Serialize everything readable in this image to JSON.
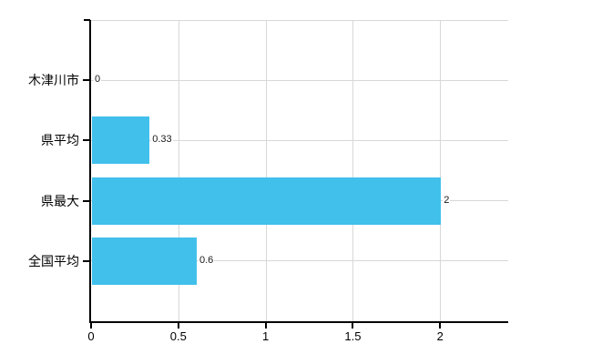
{
  "chart": {
    "bar_color": "#41c0eb",
    "gridline_color": "#d8d8d8",
    "axis_color": "#000000",
    "background_color": "#ffffff"
  },
  "chart_data": {
    "type": "bar",
    "orientation": "horizontal",
    "title": "",
    "xlabel": "",
    "ylabel": "",
    "categories": [
      "木津川市",
      "県平均",
      "県最大",
      "全国平均"
    ],
    "values": [
      0,
      0.33,
      2,
      0.6
    ],
    "value_labels": [
      "0",
      "0.33",
      "2",
      "0.6"
    ],
    "xticks": [
      0,
      0.5,
      1,
      1.5,
      2
    ],
    "xtick_labels": [
      "0",
      "0.5",
      "1",
      "1.5",
      "2"
    ],
    "xlim": [
      0,
      2.39
    ],
    "grid": "on",
    "legend_position": "none"
  }
}
